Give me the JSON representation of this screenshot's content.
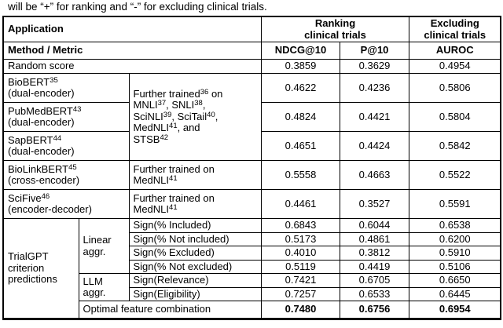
{
  "caption": "will be “+” for ranking and “-” for excluding clinical trials.",
  "table": {
    "header": {
      "application": "Application",
      "ranking_group": "Ranking\nclinical trials",
      "excluding_group": "Excluding\nclinical trials",
      "method_metric": "Method / Metric",
      "metrics": [
        "NDCG@10",
        "P@10",
        "AUROC"
      ]
    },
    "random": {
      "label": "Random score",
      "ndcg": "0.3859",
      "p10": "0.3629",
      "auroc": "0.4954"
    },
    "shared_training": "Further trained^{36} on\nMNLI^{37}, SNLI^{38},\nSciNLI^{39}, SciTail^{40},\nMedNLI^{41}, and\nSTSB^{42}",
    "models": [
      {
        "name": "BioBERT^{35}\n(dual-encoder)",
        "ndcg": "0.4622",
        "p10": "0.4236",
        "auroc": "0.5806"
      },
      {
        "name": "PubMedBERT^{43}\n(dual-encoder)",
        "ndcg": "0.4824",
        "p10": "0.4421",
        "auroc": "0.5804"
      },
      {
        "name": "SapBERT^{44}\n(dual-encoder)",
        "ndcg": "0.4651",
        "p10": "0.4424",
        "auroc": "0.5842"
      },
      {
        "name": "BioLinkBERT^{45}\n(cross-encoder)",
        "trained": "Further trained on\nMedNLI^{41}",
        "ndcg": "0.5558",
        "p10": "0.4663",
        "auroc": "0.5522"
      },
      {
        "name": "SciFive^{46}\n(encoder-decoder)",
        "trained": "Further trained on\nMedNLI^{41}",
        "ndcg": "0.4461",
        "p10": "0.3527",
        "auroc": "0.5591"
      }
    ],
    "trialgpt": {
      "label": "TrialGPT\ncriterion\npredictions",
      "groups": [
        {
          "label": "Linear\naggr.",
          "rows": [
            {
              "feature": "Sign(% Included)",
              "ndcg": "0.6843",
              "p10": "0.6044",
              "auroc": "0.6538"
            },
            {
              "feature": "Sign(% Not included)",
              "ndcg": "0.5173",
              "p10": "0.4861",
              "auroc": "0.6200"
            },
            {
              "feature": "Sign(% Excluded)",
              "ndcg": "0.4010",
              "p10": "0.3812",
              "auroc": "0.5910"
            },
            {
              "feature": "Sign(% Not excluded)",
              "ndcg": "0.5119",
              "p10": "0.4419",
              "auroc": "0.5106"
            }
          ]
        },
        {
          "label": "LLM\naggr.",
          "rows": [
            {
              "feature": "Sign(Relevance)",
              "ndcg": "0.7421",
              "p10": "0.6705",
              "auroc": "0.6650"
            },
            {
              "feature": "Sign(Eligibility)",
              "ndcg": "0.7257",
              "p10": "0.6533",
              "auroc": "0.6445"
            }
          ]
        }
      ],
      "optimal": {
        "label": "Optimal feature combination",
        "ndcg": "0.7480",
        "p10": "0.6756",
        "auroc": "0.6954"
      }
    }
  }
}
